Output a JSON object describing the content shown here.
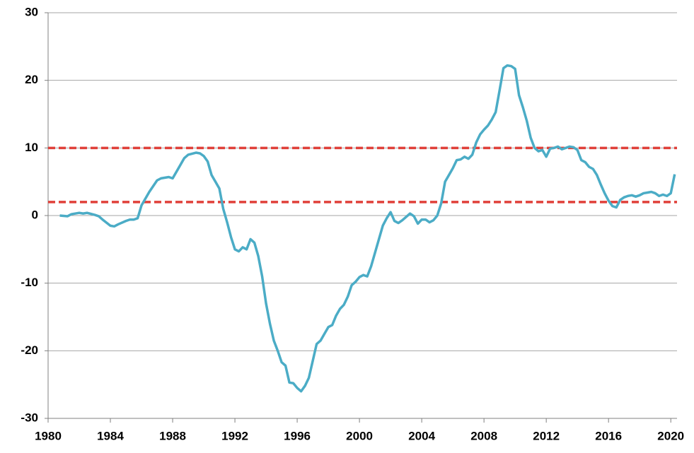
{
  "chart_data": {
    "type": "line",
    "x": [
      1980.75,
      1981.25,
      1981.5,
      1982,
      1982.25,
      1982.5,
      1983,
      1983.25,
      1983.5,
      1984,
      1984.25,
      1984.5,
      1985,
      1985.25,
      1985.5,
      1985.75,
      1986,
      1986.5,
      1987,
      1987.25,
      1987.75,
      1988,
      1988.5,
      1988.75,
      1989,
      1989.5,
      1989.75,
      1990,
      1990.25,
      1990.5,
      1990.75,
      1991,
      1991.25,
      1991.5,
      1991.75,
      1992,
      1992.25,
      1992.5,
      1992.75,
      1993,
      1993.25,
      1993.5,
      1993.75,
      1994,
      1994.25,
      1994.5,
      1994.75,
      1995,
      1995.25,
      1995.5,
      1995.75,
      1996,
      1996.25,
      1996.5,
      1996.75,
      1997,
      1997.25,
      1997.5,
      1997.75,
      1998,
      1998.25,
      1998.5,
      1998.75,
      1999,
      1999.25,
      1999.5,
      1999.75,
      2000,
      2000.25,
      2000.5,
      2000.75,
      2001,
      2001.25,
      2001.5,
      2001.75,
      2002,
      2002.25,
      2002.5,
      2002.75,
      2003,
      2003.25,
      2003.5,
      2003.75,
      2004,
      2004.25,
      2004.5,
      2004.75,
      2005,
      2005.25,
      2005.5,
      2005.75,
      2006,
      2006.25,
      2006.5,
      2006.75,
      2007,
      2007.25,
      2007.5,
      2007.75,
      2008,
      2008.25,
      2008.5,
      2008.75,
      2009,
      2009.25,
      2009.5,
      2009.75,
      2010,
      2010.25,
      2010.5,
      2010.75,
      2011,
      2011.25,
      2011.5,
      2011.75,
      2012,
      2012.25,
      2012.5,
      2012.75,
      2013,
      2013.25,
      2013.5,
      2013.75,
      2014,
      2014.25,
      2014.5,
      2014.75,
      2015,
      2015.25,
      2015.5,
      2015.75,
      2016,
      2016.25,
      2016.5,
      2016.75,
      2017,
      2017.25,
      2017.5,
      2017.75,
      2018,
      2018.25,
      2018.5,
      2018.75,
      2019,
      2019.25,
      2019.5,
      2019.75,
      2020,
      2020.25
    ],
    "values": [
      0,
      -0.1,
      0.2,
      0.4,
      0.3,
      0.4,
      0.1,
      -0.1,
      -0.6,
      -1.5,
      -1.6,
      -1.3,
      -0.8,
      -0.6,
      -0.6,
      -0.4,
      1.5,
      3.5,
      5.2,
      5.5,
      5.7,
      5.5,
      7.5,
      8.5,
      9,
      9.3,
      9.2,
      8.8,
      8,
      6,
      5,
      4,
      1,
      -1,
      -3.2,
      -5,
      -5.3,
      -4.7,
      -5,
      -3.5,
      -4,
      -6,
      -9,
      -13,
      -16,
      -18.5,
      -20,
      -21.7,
      -22.2,
      -24.7,
      -24.8,
      -25.5,
      -26,
      -25.2,
      -24,
      -21.5,
      -19,
      -18.5,
      -17.5,
      -16.5,
      -16.2,
      -14.8,
      -13.8,
      -13.2,
      -12,
      -10.3,
      -9.8,
      -9.1,
      -8.8,
      -9,
      -7.5,
      -5.5,
      -3.5,
      -1.5,
      -0.4,
      0.5,
      -0.8,
      -1.1,
      -0.7,
      -0.2,
      0.3,
      -0.1,
      -1.2,
      -0.6,
      -0.6,
      -1,
      -0.7,
      0,
      1.8,
      5,
      6,
      7,
      8.2,
      8.3,
      8.7,
      8.4,
      9,
      10.8,
      12,
      12.7,
      13.3,
      14.2,
      15.3,
      18.5,
      21.8,
      22.2,
      22.1,
      21.7,
      17.8,
      16,
      14,
      11.5,
      10,
      9.5,
      9.7,
      8.7,
      9.9,
      10,
      10.2,
      9.8,
      10,
      10.2,
      10.1,
      9.7,
      8.2,
      7.9,
      7.2,
      6.9,
      6,
      4.6,
      3.3,
      2.2,
      1.4,
      1.2,
      2.3,
      2.7,
      2.9,
      3,
      2.8,
      3,
      3.3,
      3.4,
      3.5,
      3.3,
      2.9,
      3.1,
      2.9,
      3.3,
      6.1
    ],
    "color": "#4bacc6",
    "reference_lines": [
      {
        "value": 10,
        "color": "#e0403a"
      },
      {
        "value": 2,
        "color": "#e0403a"
      }
    ],
    "xlim": [
      1980,
      2020.4
    ],
    "xticks": [
      1980,
      1984,
      1988,
      1992,
      1996,
      2000,
      2004,
      2008,
      2012,
      2016,
      2020
    ],
    "ylim": [
      -30,
      30
    ],
    "yticks": [
      -30,
      -20,
      -10,
      0,
      10,
      20,
      30
    ],
    "grid": true
  }
}
